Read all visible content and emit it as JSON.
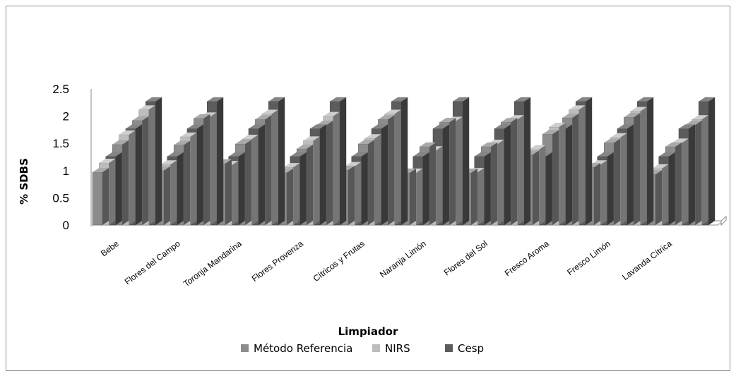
{
  "chart_data": {
    "type": "bar",
    "style": "3d-clustered-column",
    "categories": [
      "Bebe",
      "Flores del Campo",
      "Toronja Mandarina",
      "Flores Provenza",
      "Cítricos y Frutas",
      "Naranja Limón",
      "Flores del Sol",
      "Fresco Aroma",
      "Fresco Limón",
      "Lavanda Cítrica"
    ],
    "series": [
      {
        "name": "Método Referencia",
        "values": [
          0.97,
          1.0,
          1.13,
          0.96,
          1.01,
          0.96,
          0.96,
          1.29,
          1.06,
          0.93
        ],
        "color": "#8c8c8c"
      },
      {
        "name": "NIRS",
        "values": [
          1.14,
          1.11,
          1.1,
          1.06,
          1.08,
          0.96,
          0.97,
          1.39,
          1.11,
          1.04
        ],
        "color": "#bdbdbd"
      },
      {
        "name": "Cesp",
        "values": [
          1.26,
          1.26,
          1.26,
          1.26,
          1.26,
          1.26,
          1.26,
          1.26,
          1.26,
          1.26
        ],
        "color": "#5c5c5c"
      },
      {
        "name": "Método Referencia",
        "values": [
          1.48,
          1.47,
          1.49,
          1.4,
          1.49,
          1.44,
          1.44,
          1.67,
          1.51,
          1.44
        ],
        "color": "#8c8c8c"
      },
      {
        "name": "NIRS",
        "values": [
          1.66,
          1.62,
          1.58,
          1.55,
          1.59,
          1.37,
          1.49,
          1.8,
          1.61,
          1.51
        ],
        "color": "#bdbdbd"
      },
      {
        "name": "Cesp",
        "values": [
          1.77,
          1.77,
          1.77,
          1.77,
          1.77,
          1.77,
          1.77,
          1.77,
          1.77,
          1.77
        ],
        "color": "#5c5c5c"
      },
      {
        "name": "Método Referencia",
        "values": [
          1.92,
          1.96,
          1.94,
          1.84,
          1.94,
          1.89,
          1.89,
          1.97,
          1.98,
          1.84
        ],
        "color": "#8c8c8c"
      },
      {
        "name": "NIRS",
        "values": [
          2.12,
          1.99,
          2.04,
          2.0,
          2.04,
          1.91,
          1.94,
          2.12,
          2.09,
          1.94
        ],
        "color": "#bdbdbd"
      },
      {
        "name": "Cesp",
        "values": [
          2.27,
          2.27,
          2.27,
          2.27,
          2.27,
          2.27,
          2.27,
          2.27,
          2.27,
          2.27
        ],
        "color": "#5c5c5c"
      }
    ],
    "ylabel": "% SDBS",
    "xlabel": "Limpiador",
    "ylim": [
      0,
      2.5
    ],
    "yticks": [
      "0",
      "0.5",
      "1",
      "1.5",
      "2",
      "2.5"
    ],
    "legend_position": "bottom",
    "legend": [
      {
        "label": "Método Referencia",
        "color": "#8c8c8c"
      },
      {
        "label": "NIRS",
        "color": "#bdbdbd"
      },
      {
        "label": "Cesp",
        "color": "#5c5c5c"
      }
    ],
    "grid": false
  }
}
